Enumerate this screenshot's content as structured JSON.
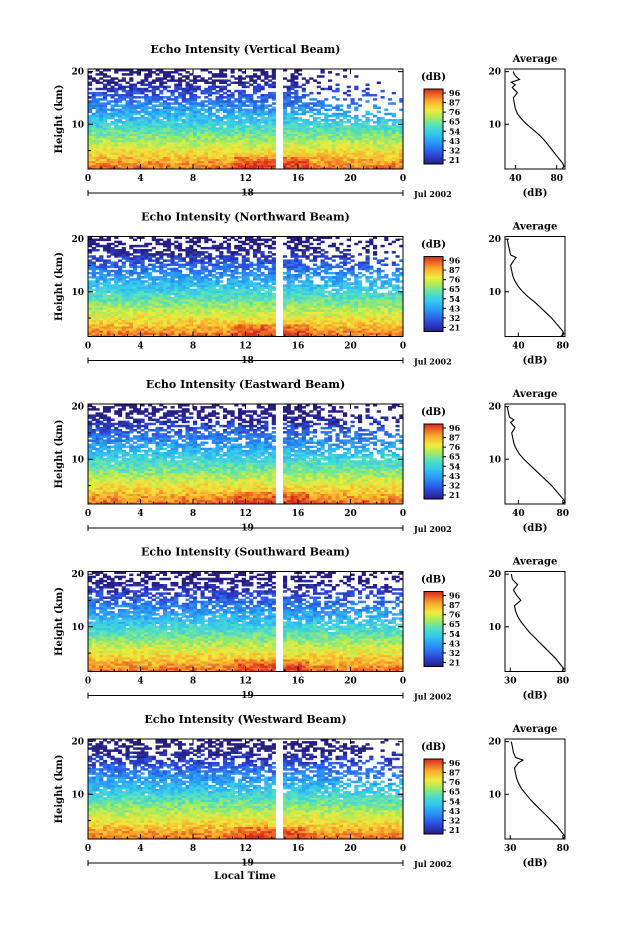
{
  "figure": {
    "xlabel": "Local Time",
    "colorbar_unit": "(dB)",
    "colorbar_ticks": [
      "96",
      "87",
      "76",
      "65",
      "54",
      "43",
      "32",
      "21"
    ],
    "profile_title": "Average",
    "profile_xlabel": "(dB)"
  },
  "chart_data": [
    {
      "type": "heatmap",
      "title": "Echo Intensity (Vertical Beam)",
      "ylabel": "Height (km)",
      "xticks": [
        "0",
        "4",
        "8",
        "12",
        "16",
        "20",
        "0"
      ],
      "yticks": [
        "20",
        "10"
      ],
      "xlim": [
        0,
        24
      ],
      "ylim": [
        1.5,
        20.5
      ],
      "date_label": "Jul 2002",
      "day_label": "18",
      "colorbar_range_db": [
        21,
        96
      ],
      "profile": {
        "title": "Average",
        "xticks": [
          "40",
          "80"
        ],
        "xlim": [
          30,
          88
        ],
        "yticks": [
          "20",
          "10"
        ],
        "height_km": [
          1.5,
          2,
          2.5,
          3,
          4,
          5,
          6,
          7,
          8,
          9,
          10,
          11,
          12,
          13,
          14,
          15,
          16,
          17,
          17.5,
          18,
          18.5,
          19,
          19.5,
          20
        ],
        "db": [
          85,
          87,
          86,
          84,
          80,
          76,
          72,
          68,
          63,
          57,
          51,
          46,
          42,
          40,
          39,
          38,
          42,
          37,
          40,
          36,
          44,
          41,
          39,
          38
        ]
      }
    },
    {
      "type": "heatmap",
      "title": "Echo Intensity (Northward Beam)",
      "ylabel": "Height (km)",
      "xticks": [
        "0",
        "4",
        "8",
        "12",
        "16",
        "20",
        "0"
      ],
      "yticks": [
        "20",
        "10"
      ],
      "xlim": [
        0,
        24
      ],
      "ylim": [
        1.5,
        20.5
      ],
      "date_label": "Jul 2002",
      "day_label": "18",
      "colorbar_range_db": [
        21,
        96
      ],
      "profile": {
        "title": "Average",
        "xticks": [
          "40",
          "80"
        ],
        "xlim": [
          28,
          82
        ],
        "yticks": [
          "20",
          "10"
        ],
        "height_km": [
          1.5,
          2,
          2.5,
          3,
          4,
          5,
          6,
          7,
          8,
          9,
          10,
          11,
          12,
          13,
          14,
          15,
          16,
          16.5,
          17,
          18,
          19,
          20
        ],
        "db": [
          78,
          81,
          80,
          78,
          74,
          70,
          65,
          60,
          55,
          49,
          44,
          40,
          37,
          35,
          34,
          33,
          36,
          38,
          33,
          32,
          31,
          30
        ]
      }
    },
    {
      "type": "heatmap",
      "title": "Echo Intensity (Eastward Beam)",
      "ylabel": "Height (km)",
      "xticks": [
        "0",
        "4",
        "8",
        "12",
        "16",
        "20",
        "0"
      ],
      "yticks": [
        "20",
        "10"
      ],
      "xlim": [
        0,
        24
      ],
      "ylim": [
        1.5,
        20.5
      ],
      "date_label": "Jul 2002",
      "day_label": "19",
      "colorbar_range_db": [
        21,
        96
      ],
      "profile": {
        "title": "Average",
        "xticks": [
          "40",
          "80"
        ],
        "xlim": [
          28,
          82
        ],
        "yticks": [
          "20",
          "10"
        ],
        "height_km": [
          1.5,
          2,
          2.5,
          3,
          4,
          5,
          6,
          7,
          8,
          9,
          10,
          11,
          12,
          13,
          14,
          15,
          16,
          17,
          17.5,
          18,
          19,
          20
        ],
        "db": [
          80,
          82,
          80,
          78,
          74,
          70,
          65,
          60,
          55,
          50,
          45,
          41,
          38,
          36,
          35,
          34,
          37,
          33,
          36,
          32,
          31,
          30
        ]
      }
    },
    {
      "type": "heatmap",
      "title": "Echo Intensity (Southward Beam)",
      "ylabel": "Height (km)",
      "xticks": [
        "0",
        "4",
        "8",
        "12",
        "16",
        "20",
        "0"
      ],
      "yticks": [
        "20",
        "10"
      ],
      "xlim": [
        0,
        24
      ],
      "ylim": [
        1.5,
        20.5
      ],
      "date_label": "Jul 2002",
      "day_label": "19",
      "colorbar_range_db": [
        21,
        96
      ],
      "profile": {
        "title": "Average",
        "xticks": [
          "30",
          "80"
        ],
        "xlim": [
          25,
          82
        ],
        "yticks": [
          "20",
          "10"
        ],
        "height_km": [
          1.5,
          2,
          2.5,
          3,
          4,
          5,
          6,
          7,
          8,
          9,
          10,
          11,
          12,
          13,
          14,
          15,
          16,
          17,
          18,
          19,
          20
        ],
        "db": [
          79,
          81,
          79,
          77,
          73,
          68,
          63,
          58,
          53,
          48,
          44,
          40,
          37,
          35,
          34,
          40,
          36,
          33,
          37,
          32,
          31
        ]
      }
    },
    {
      "type": "heatmap",
      "title": "Echo Intensity (Westward Beam)",
      "ylabel": "Height (km)",
      "xticks": [
        "0",
        "4",
        "8",
        "12",
        "16",
        "20",
        "0"
      ],
      "yticks": [
        "20",
        "10"
      ],
      "xlim": [
        0,
        24
      ],
      "ylim": [
        1.5,
        20.5
      ],
      "date_label": "Jul 2002",
      "day_label": "19",
      "colorbar_range_db": [
        21,
        96
      ],
      "profile": {
        "title": "Average",
        "xticks": [
          "30",
          "80"
        ],
        "xlim": [
          25,
          82
        ],
        "yticks": [
          "20",
          "10"
        ],
        "height_km": [
          1.5,
          2,
          2.5,
          3,
          4,
          5,
          6,
          7,
          8,
          9,
          10,
          11,
          12,
          13,
          14,
          15,
          16,
          16.5,
          17,
          18,
          19,
          20
        ],
        "db": [
          80,
          82,
          80,
          78,
          74,
          69,
          64,
          59,
          54,
          49,
          45,
          41,
          38,
          36,
          35,
          34,
          38,
          42,
          35,
          33,
          32,
          31
        ]
      }
    }
  ]
}
